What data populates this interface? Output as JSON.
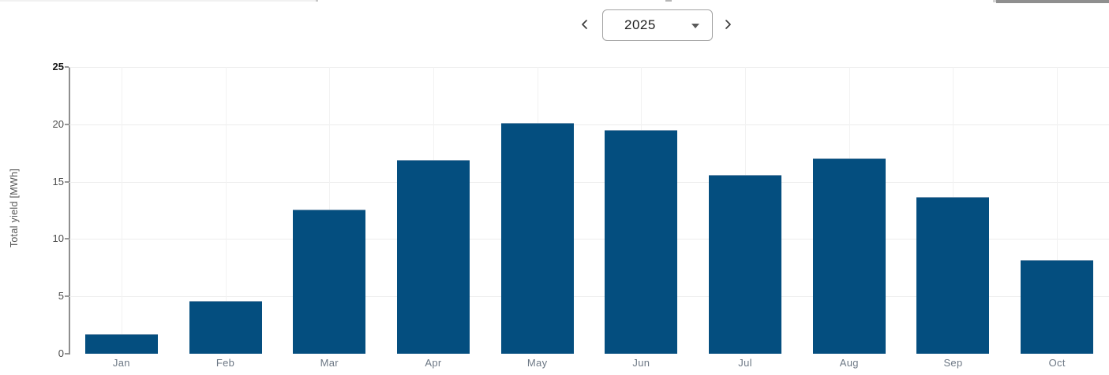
{
  "year_selector": {
    "year": "2025"
  },
  "chart_data": {
    "type": "bar",
    "title": "",
    "ylabel": "Total yield [MWh]",
    "xlabel": "",
    "categories": [
      "Jan",
      "Feb",
      "Mar",
      "Apr",
      "May",
      "Jun",
      "Jul",
      "Aug",
      "Sep",
      "Oct"
    ],
    "values": [
      1.7,
      4.6,
      12.6,
      16.9,
      20.1,
      19.5,
      15.6,
      17.0,
      13.7,
      8.2
    ],
    "ylim": [
      0,
      25
    ],
    "yticks": [
      0,
      5,
      10,
      15,
      20,
      25
    ],
    "bar_color": "#044e7f",
    "grid": true,
    "legend": false
  }
}
